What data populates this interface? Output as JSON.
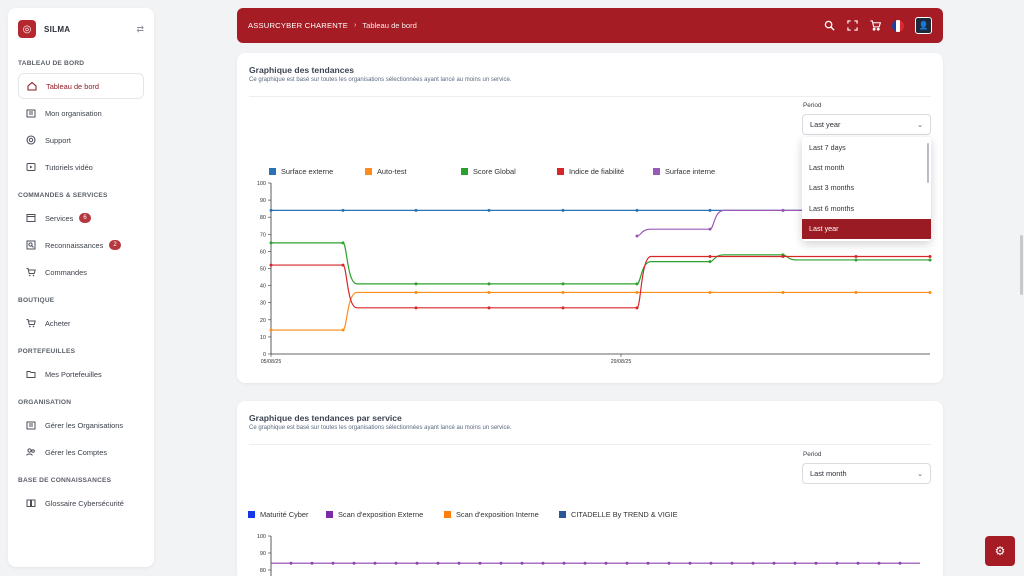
{
  "sidebar": {
    "brand": "SILMA",
    "sections": [
      {
        "title": "TABLEAU DE BORD",
        "items": [
          {
            "label": "Tableau de bord",
            "icon": "home-icon",
            "active": true
          },
          {
            "label": "Mon organisation",
            "icon": "building-icon"
          },
          {
            "label": "Support",
            "icon": "lifebuoy-icon"
          },
          {
            "label": "Tutoriels vidéo",
            "icon": "video-icon"
          }
        ]
      },
      {
        "title": "COMMANDES & SERVICES",
        "items": [
          {
            "label": "Services",
            "icon": "box-icon",
            "badge": "6"
          },
          {
            "label": "Reconnaissances",
            "icon": "search-doc-icon",
            "badge": "2"
          },
          {
            "label": "Commandes",
            "icon": "cart-icon"
          }
        ]
      },
      {
        "title": "BOUTIQUE",
        "items": [
          {
            "label": "Acheter",
            "icon": "cart-icon"
          }
        ]
      },
      {
        "title": "PORTEFEUILLES",
        "items": [
          {
            "label": "Mes Portefeuilles",
            "icon": "folder-icon"
          }
        ]
      },
      {
        "title": "ORGANISATION",
        "items": [
          {
            "label": "Gérer les Organisations",
            "icon": "building-icon"
          },
          {
            "label": "Gérer les Comptes",
            "icon": "users-icon"
          }
        ]
      },
      {
        "title": "BASE DE CONNAISSANCES",
        "items": [
          {
            "label": "Glossaire Cybersécurité",
            "icon": "book-icon"
          }
        ]
      }
    ]
  },
  "header": {
    "org": "ASSURCYBER CHARENTE",
    "separator": "›",
    "page": "Tableau de bord",
    "icons": [
      "search-icon",
      "fullscreen-icon",
      "cart-icon",
      "flag-fr-icon",
      "avatar"
    ]
  },
  "card1": {
    "title": "Graphique des tendances",
    "subtitle": "Ce graphique est basé sur toutes les organisations sélectionnées ayant lancé au moins un service.",
    "period_label": "Period",
    "period_value": "Last year",
    "dropdown_options": [
      "Last 7 days",
      "Last month",
      "Last 3 months",
      "Last 6 months",
      "Last year"
    ],
    "dropdown_selected": "Last year"
  },
  "card2": {
    "title": "Graphique des tendances par service",
    "subtitle": "Ce graphique est basé sur toutes les organisations sélectionnées ayant lancé au moins un service.",
    "period_label": "Period",
    "period_value": "Last month"
  },
  "chart_data": [
    {
      "type": "line",
      "legend_position": "top-left",
      "grid": false,
      "ylim": [
        0,
        100
      ],
      "yticks": [
        0,
        10,
        20,
        30,
        40,
        50,
        60,
        70,
        80,
        90,
        100
      ],
      "xtick_labels": [
        "05/08/25",
        "29/08/25"
      ],
      "x": [
        0,
        1,
        2,
        3,
        4,
        5,
        6,
        7,
        8,
        9
      ],
      "series": [
        {
          "name": "Surface externe",
          "color": "#2a72b5",
          "values": [
            84,
            84,
            84,
            84,
            84,
            84,
            84,
            84,
            84,
            null
          ]
        },
        {
          "name": "Auto-test",
          "color": "#ff8c1a",
          "values": [
            14,
            14,
            36,
            36,
            36,
            36,
            36,
            36,
            36,
            36
          ]
        },
        {
          "name": "Score Global",
          "color": "#2ca02c",
          "values": [
            65,
            65,
            41,
            41,
            41,
            41,
            54,
            58,
            55,
            55
          ]
        },
        {
          "name": "Indice de fiabilité",
          "color": "#d62728",
          "values": [
            52,
            52,
            27,
            27,
            27,
            27,
            57,
            57,
            57,
            57
          ]
        },
        {
          "name": "Surface interne",
          "color": "#9b59b6",
          "values": [
            null,
            null,
            null,
            null,
            null,
            69,
            73,
            84,
            84,
            null
          ]
        }
      ]
    },
    {
      "type": "line",
      "legend_position": "top-left",
      "grid": false,
      "ylim": [
        0,
        100
      ],
      "yticks": [
        80,
        90,
        100
      ],
      "series_legend": [
        {
          "name": "Maturité Cyber",
          "color": "#1537e8"
        },
        {
          "name": "Scan d'exposition Externe",
          "color": "#7b2aa8"
        },
        {
          "name": "Scan d'exposition Interne",
          "color": "#ff7f0e"
        },
        {
          "name": "CITADELLE By TREND & VIGIE",
          "color": "#2a5596"
        }
      ],
      "visible_series": {
        "name": "Scan d'exposition Externe",
        "color": "#8e44ad",
        "value": 84
      }
    }
  ]
}
